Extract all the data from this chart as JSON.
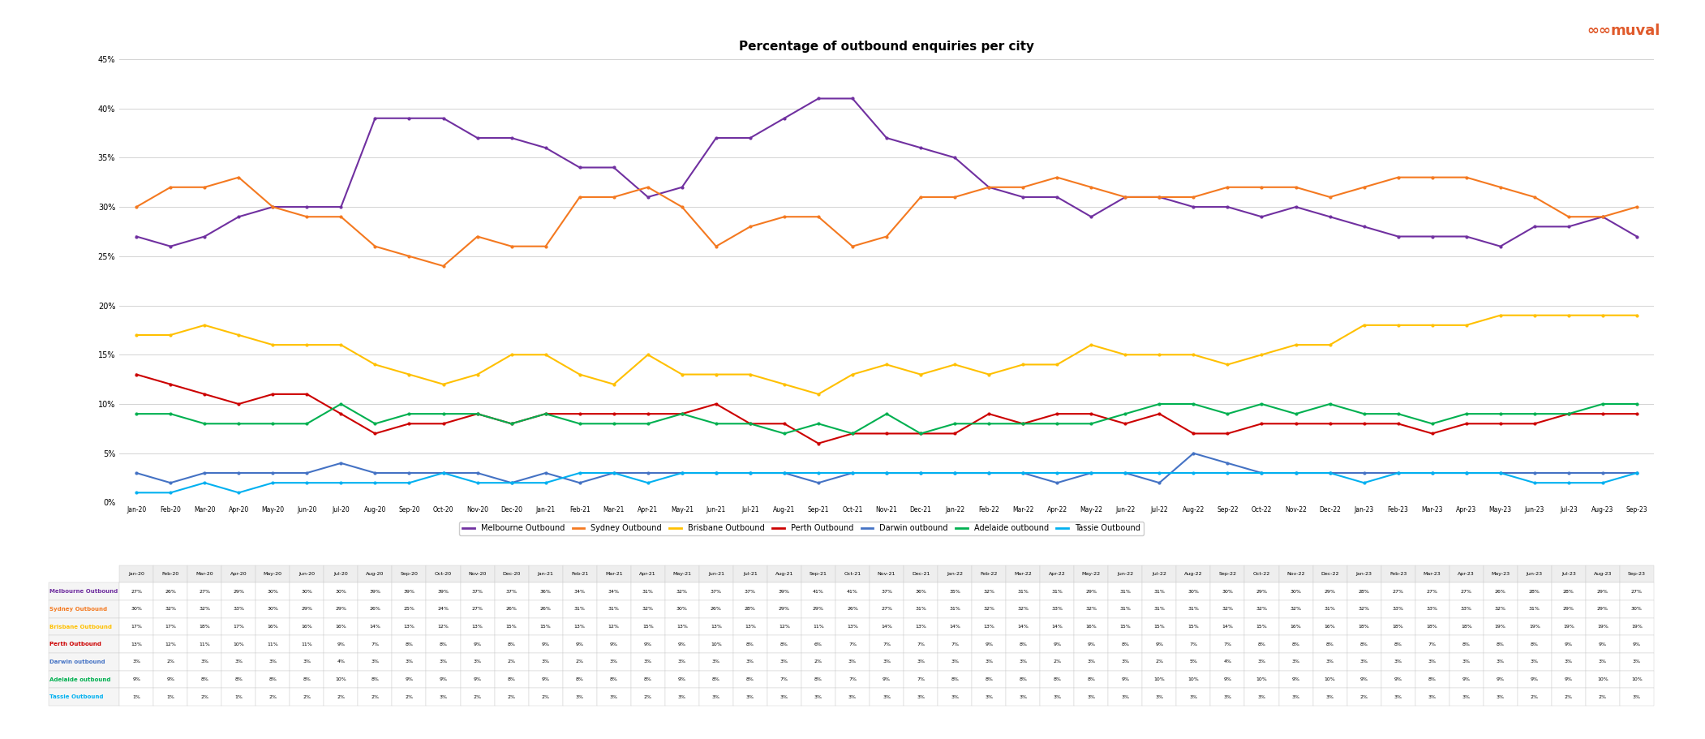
{
  "title": "Percentage of outbound enquiries per city",
  "x_labels": [
    "Jan-20",
    "Feb-20",
    "Mar-20",
    "Apr-20",
    "May-20",
    "Jun-20",
    "Jul-20",
    "Aug-20",
    "Sep-20",
    "Oct-20",
    "Nov-20",
    "Dec-20",
    "Jan-21",
    "Feb-21",
    "Mar-21",
    "Apr-21",
    "May-21",
    "Jun-21",
    "Jul-21",
    "Aug-21",
    "Sep-21",
    "Oct-21",
    "Nov-21",
    "Dec-21",
    "Jan-22",
    "Feb-22",
    "Mar-22",
    "Apr-22",
    "May-22",
    "Jun-22",
    "Jul-22",
    "Aug-22",
    "Sep-22",
    "Oct-22",
    "Nov-22",
    "Dec-22",
    "Jan-23",
    "Feb-23",
    "Mar-23",
    "Apr-23",
    "May-23",
    "Jun-23",
    "Jul-23",
    "Aug-23",
    "Sep-23"
  ],
  "series": [
    {
      "name": "Melbourne Outbound",
      "color": "#7030a0",
      "data": [
        27,
        26,
        27,
        29,
        30,
        30,
        30,
        39,
        39,
        39,
        37,
        37,
        36,
        34,
        34,
        31,
        32,
        37,
        37,
        39,
        41,
        41,
        37,
        36,
        35,
        32,
        31,
        31,
        29,
        31,
        31,
        30,
        30,
        29,
        30,
        29,
        28,
        27,
        27,
        27,
        26,
        28,
        28,
        29,
        27
      ]
    },
    {
      "name": "Sydney Outbound",
      "color": "#f47920",
      "data": [
        30,
        32,
        32,
        33,
        30,
        29,
        29,
        26,
        25,
        24,
        27,
        26,
        26,
        31,
        31,
        32,
        30,
        26,
        28,
        29,
        29,
        26,
        27,
        31,
        31,
        32,
        32,
        33,
        32,
        31,
        31,
        31,
        32,
        32,
        32,
        31,
        32,
        33,
        33,
        33,
        32,
        31,
        29,
        29,
        30
      ]
    },
    {
      "name": "Brisbane Outbound",
      "color": "#ffc000",
      "data": [
        17,
        17,
        18,
        17,
        16,
        16,
        16,
        14,
        13,
        12,
        13,
        15,
        15,
        13,
        12,
        15,
        13,
        13,
        13,
        12,
        11,
        13,
        14,
        13,
        14,
        13,
        14,
        14,
        16,
        15,
        15,
        15,
        14,
        15,
        16,
        16,
        18,
        18,
        18,
        18,
        19,
        19,
        19,
        19,
        19
      ]
    },
    {
      "name": "Perth Outbound",
      "color": "#cc0000",
      "data": [
        13,
        12,
        11,
        10,
        11,
        11,
        9,
        7,
        8,
        8,
        9,
        8,
        9,
        9,
        9,
        9,
        9,
        10,
        8,
        8,
        6,
        7,
        7,
        7,
        7,
        9,
        8,
        9,
        9,
        8,
        9,
        7,
        7,
        8,
        8,
        8,
        8,
        8,
        7,
        8,
        8,
        8,
        9,
        9,
        9
      ]
    },
    {
      "name": "Darwin outbound",
      "color": "#4472c4",
      "data": [
        3,
        2,
        3,
        3,
        3,
        3,
        4,
        3,
        3,
        3,
        3,
        2,
        3,
        2,
        3,
        3,
        3,
        3,
        3,
        3,
        2,
        3,
        3,
        3,
        3,
        3,
        3,
        2,
        3,
        3,
        2,
        5,
        4,
        3,
        3,
        3,
        3,
        3,
        3,
        3,
        3,
        3,
        3,
        3,
        3
      ]
    },
    {
      "name": "Adelaide outbound",
      "color": "#00b050",
      "data": [
        9,
        9,
        8,
        8,
        8,
        8,
        10,
        8,
        9,
        9,
        9,
        8,
        9,
        8,
        8,
        8,
        9,
        8,
        8,
        7,
        8,
        7,
        9,
        7,
        8,
        8,
        8,
        8,
        8,
        9,
        10,
        10,
        9,
        10,
        9,
        10,
        9,
        9,
        8,
        9,
        9,
        9,
        9,
        10,
        10
      ]
    },
    {
      "name": "Tassie Outbound",
      "color": "#00b0f0",
      "data": [
        1,
        1,
        2,
        1,
        2,
        2,
        2,
        2,
        2,
        3,
        2,
        2,
        2,
        3,
        3,
        2,
        3,
        3,
        3,
        3,
        3,
        3,
        3,
        3,
        3,
        3,
        3,
        3,
        3,
        3,
        3,
        3,
        3,
        3,
        3,
        3,
        2,
        3,
        3,
        3,
        3,
        2,
        2,
        2,
        3
      ]
    }
  ],
  "table_data": {
    "Melbourne Outbound": [
      27,
      26,
      27,
      29,
      30,
      30,
      30,
      39,
      39,
      39,
      37,
      37,
      36,
      34,
      34,
      31,
      32,
      37,
      37,
      39,
      41,
      41,
      37,
      36,
      35,
      32,
      31,
      31,
      29,
      31,
      31,
      30,
      30,
      29,
      30,
      29,
      28,
      27,
      27,
      27,
      26,
      28,
      28,
      29,
      27
    ],
    "Sydney Outbound": [
      30,
      32,
      32,
      33,
      30,
      29,
      29,
      26,
      25,
      24,
      27,
      26,
      26,
      31,
      31,
      32,
      30,
      26,
      28,
      29,
      29,
      26,
      27,
      31,
      31,
      32,
      32,
      33,
      32,
      31,
      31,
      31,
      32,
      32,
      32,
      31,
      32,
      33,
      33,
      33,
      32,
      31,
      29,
      29,
      30
    ],
    "Brisbane Outbound": [
      17,
      17,
      18,
      17,
      16,
      16,
      16,
      14,
      13,
      12,
      13,
      15,
      15,
      13,
      12,
      15,
      13,
      13,
      13,
      12,
      11,
      13,
      14,
      13,
      14,
      13,
      14,
      14,
      16,
      15,
      15,
      15,
      14,
      15,
      16,
      16,
      18,
      18,
      18,
      18,
      19,
      19,
      19,
      19,
      19
    ],
    "Perth Outbound": [
      13,
      12,
      11,
      10,
      11,
      11,
      9,
      7,
      8,
      8,
      9,
      8,
      9,
      9,
      9,
      9,
      9,
      10,
      8,
      8,
      6,
      7,
      7,
      7,
      7,
      9,
      8,
      9,
      9,
      8,
      9,
      7,
      7,
      8,
      8,
      8,
      8,
      8,
      7,
      8,
      8,
      8,
      9,
      9,
      9
    ],
    "Darwin outbound": [
      3,
      2,
      3,
      3,
      3,
      3,
      4,
      3,
      3,
      3,
      3,
      2,
      3,
      2,
      3,
      3,
      3,
      3,
      3,
      3,
      2,
      3,
      3,
      3,
      3,
      3,
      3,
      2,
      3,
      3,
      2,
      5,
      4,
      3,
      3,
      3,
      3,
      3,
      3,
      3,
      3,
      3,
      3,
      3,
      3
    ],
    "Adelaide outbound": [
      9,
      9,
      8,
      8,
      8,
      8,
      10,
      8,
      9,
      9,
      9,
      8,
      9,
      8,
      8,
      8,
      9,
      8,
      8,
      7,
      8,
      7,
      9,
      7,
      8,
      8,
      8,
      8,
      8,
      9,
      10,
      10,
      9,
      10,
      9,
      10,
      9,
      9,
      8,
      9,
      9,
      9,
      9,
      10,
      10
    ],
    "Tassie Outbound": [
      1,
      1,
      2,
      1,
      2,
      2,
      2,
      2,
      2,
      3,
      2,
      2,
      2,
      3,
      3,
      2,
      3,
      3,
      3,
      3,
      3,
      3,
      3,
      3,
      3,
      3,
      3,
      3,
      3,
      3,
      3,
      3,
      3,
      3,
      3,
      3,
      2,
      3,
      3,
      3,
      3,
      2,
      2,
      2,
      3
    ]
  },
  "ylim": [
    0,
    0.45
  ],
  "yticks": [
    0.0,
    0.05,
    0.1,
    0.15,
    0.2,
    0.25,
    0.3,
    0.35,
    0.4,
    0.45
  ],
  "background_color": "#ffffff",
  "grid_color": "#cccccc",
  "title_fontsize": 11,
  "line_width": 1.5,
  "muval_color": "#e05a2b"
}
